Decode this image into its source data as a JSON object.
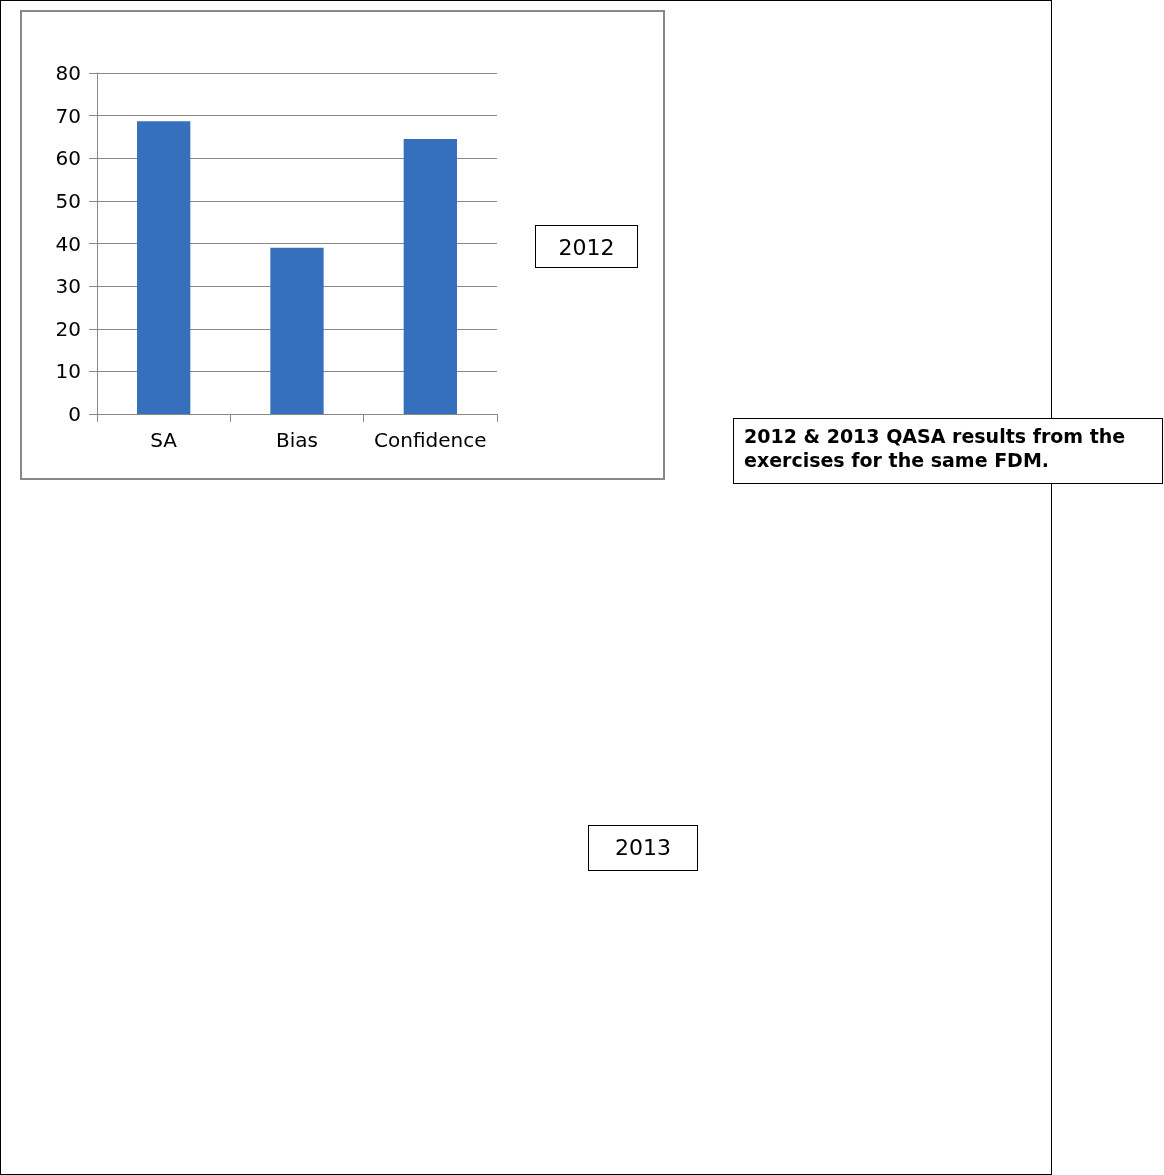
{
  "chart_data": {
    "type": "bar",
    "categories": [
      "SA",
      "Bias",
      "Confidence"
    ],
    "values": [
      68.7,
      39,
      64.5
    ],
    "color": "#3670bd",
    "ylim": [
      0,
      80
    ],
    "yticks": [
      0,
      10,
      20,
      30,
      40,
      50,
      60,
      70,
      80
    ],
    "grid": "y",
    "annotations": [
      "2012",
      "2012 & 2013 QASA results from the exercises for the same FDM.",
      "2013"
    ]
  }
}
